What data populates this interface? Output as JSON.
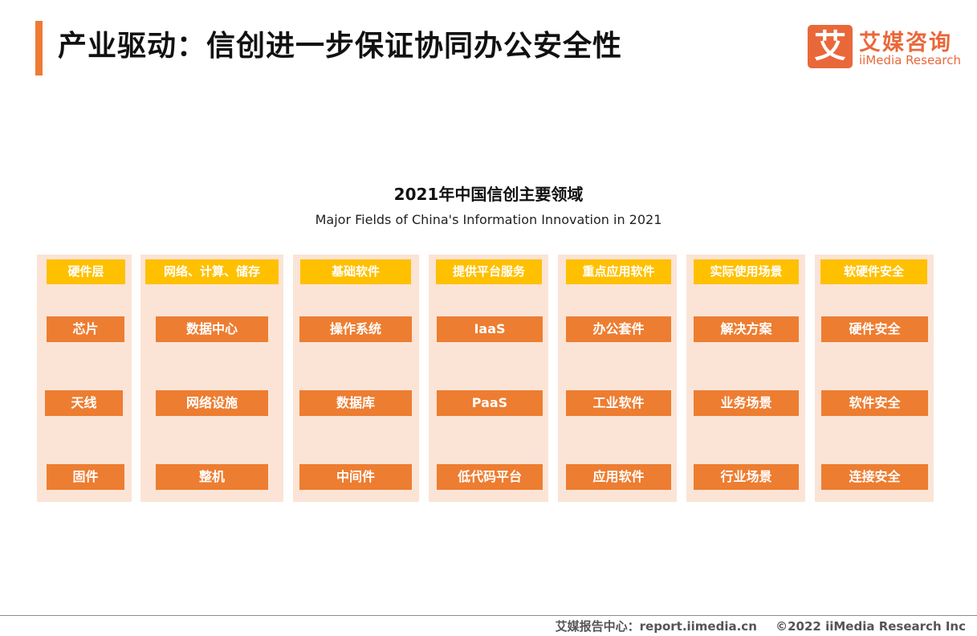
{
  "header": {
    "title": "产业驱动：信创进一步保证协同办公安全性"
  },
  "logo": {
    "mark": "艾",
    "cn": "艾媒咨询",
    "en": "iiMedia Research"
  },
  "diagram": {
    "title": "2021年中国信创主要领域",
    "subtitle": "Major Fields of China's Information Innovation in 2021",
    "colors": {
      "header": "#ffc000",
      "item": "#ed7d31",
      "panel": "#fbe4d6"
    },
    "columns": [
      {
        "header": "硬件层",
        "items": [
          "芯片",
          "天线",
          "固件"
        ]
      },
      {
        "header": "网络、计算、储存",
        "items": [
          "数据中心",
          "网络设施",
          "整机"
        ]
      },
      {
        "header": "基础软件",
        "items": [
          "操作系统",
          "数据库",
          "中间件"
        ]
      },
      {
        "header": "提供平台服务",
        "items": [
          "IaaS",
          "PaaS",
          "低代码平台"
        ]
      },
      {
        "header": "重点应用软件",
        "items": [
          "办公套件",
          "工业软件",
          "应用软件"
        ]
      },
      {
        "header": "实际使用场景",
        "items": [
          "解决方案",
          "业务场景",
          "行业场景"
        ]
      },
      {
        "header": "软硬件安全",
        "items": [
          "硬件安全",
          "软件安全",
          "连接安全"
        ]
      }
    ]
  },
  "footer": {
    "source": "艾媒报告中心：report.iimedia.cn",
    "copyright": "©2022  iiMedia Research  Inc"
  }
}
